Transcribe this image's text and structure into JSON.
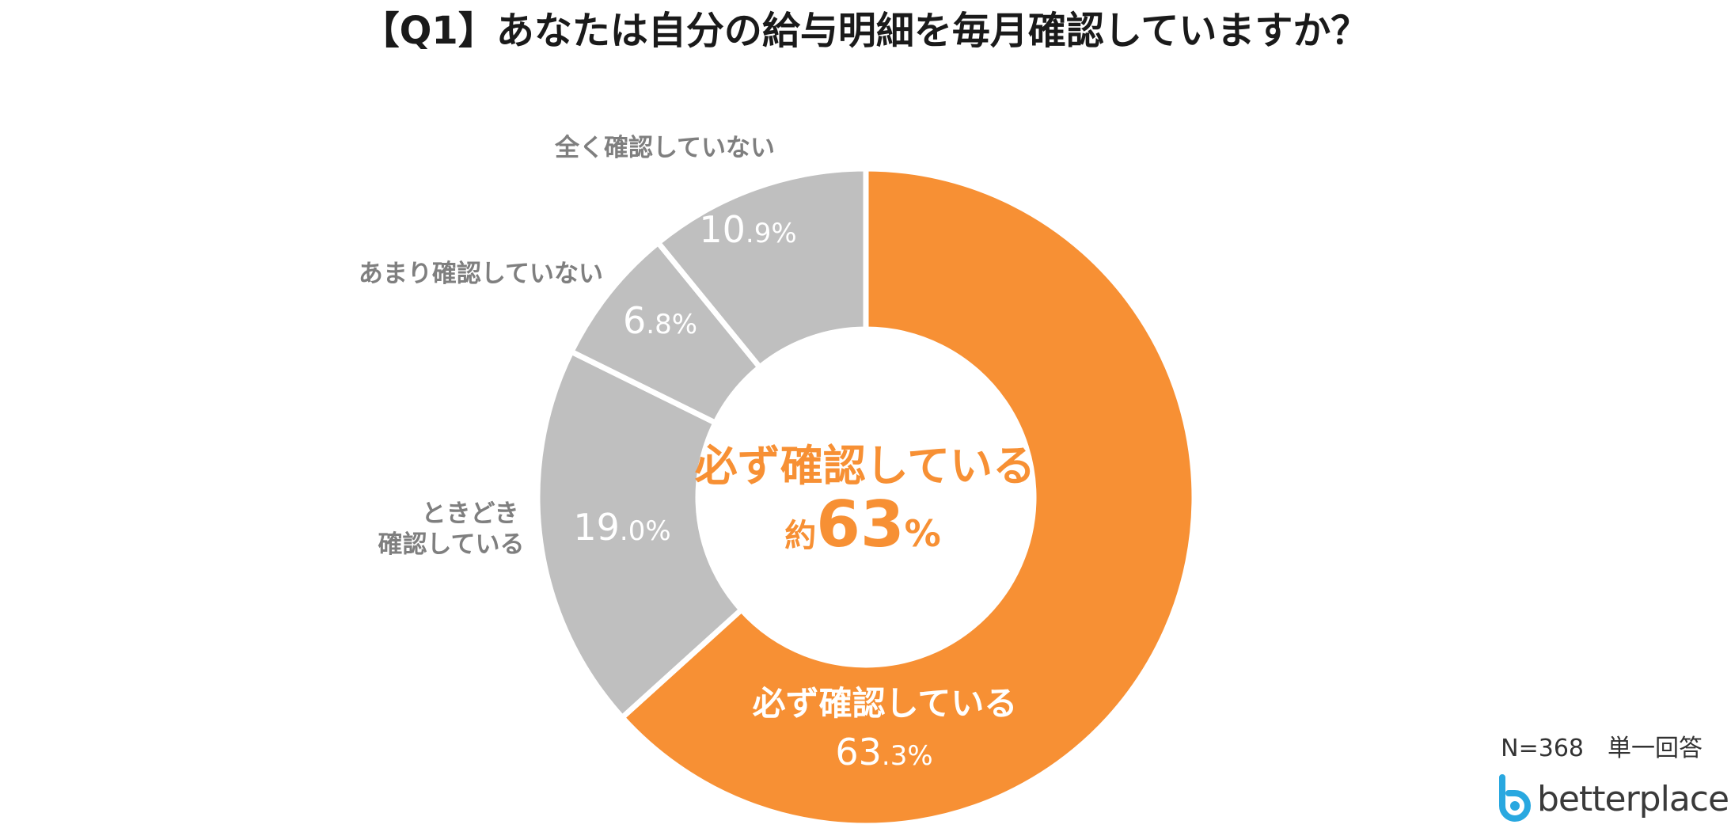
{
  "chart_data": {
    "type": "donut",
    "title": "【Q1】あなたは自分の給与明細を毎月確認していますか？",
    "slices": [
      {
        "label": "必ず確認している",
        "value": 63.3,
        "display_int": "63",
        "display_dec": ".3%",
        "color": "#f79034"
      },
      {
        "label": "ときどき確認している",
        "value": 19.0,
        "display_int": "19",
        "display_dec": ".0%",
        "color": "#bfbfbf"
      },
      {
        "label": "あまり確認していない",
        "value": 6.8,
        "display_int": "6",
        "display_dec": ".8%",
        "color": "#bfbfbf"
      },
      {
        "label": "全く確認していない",
        "value": 10.9,
        "display_int": "10",
        "display_dec": ".9%",
        "color": "#bfbfbf"
      }
    ],
    "outside_labels": {
      "sometimes_line1": "ときどき",
      "sometimes_line2": "確認している",
      "rarely": "あまり確認していない",
      "never": "全く確認していない"
    },
    "center": {
      "main": "必ず確認している",
      "prefix": "約",
      "number": "63",
      "suffix": "%"
    }
  },
  "footnote": "N=368　単一回答",
  "logo": {
    "text": "betterplace",
    "icon": "betterplace-logo-icon",
    "color": "#29a8e0"
  }
}
